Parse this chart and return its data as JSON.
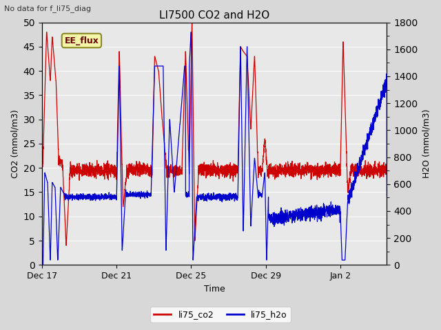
{
  "title": "LI7500 CO2 and H2O",
  "top_left_text": "No data for f_li75_diag",
  "ylabel_left": "CO2 (mmol/m3)",
  "ylabel_right": "H2O (mmol/m3)",
  "xlabel": "Time",
  "ylim_left": [
    0,
    50
  ],
  "ylim_right": [
    0,
    1800
  ],
  "yticks_left": [
    0,
    5,
    10,
    15,
    20,
    25,
    30,
    35,
    40,
    45,
    50
  ],
  "yticks_right": [
    0,
    200,
    400,
    600,
    800,
    1000,
    1200,
    1400,
    1600,
    1800
  ],
  "xtick_labels": [
    "Dec 17",
    "Dec 21",
    "Dec 25",
    "Dec 29",
    "Jan 2"
  ],
  "legend_labels": [
    "li75_co2",
    "li75_h2o"
  ],
  "legend_colors": [
    "#cc0000",
    "#0000cc"
  ],
  "color_co2": "#cc0000",
  "color_h2o": "#0000cc",
  "annotation_text": "EE_flux",
  "plot_bg_color": "#e8e8e8",
  "fig_bg_color": "#d8d8d8",
  "grid_color": "#ffffff",
  "linewidth": 0.9,
  "total_days": 18.5,
  "xtick_pos": [
    0,
    4,
    8,
    12,
    16
  ],
  "n_points": 3000
}
